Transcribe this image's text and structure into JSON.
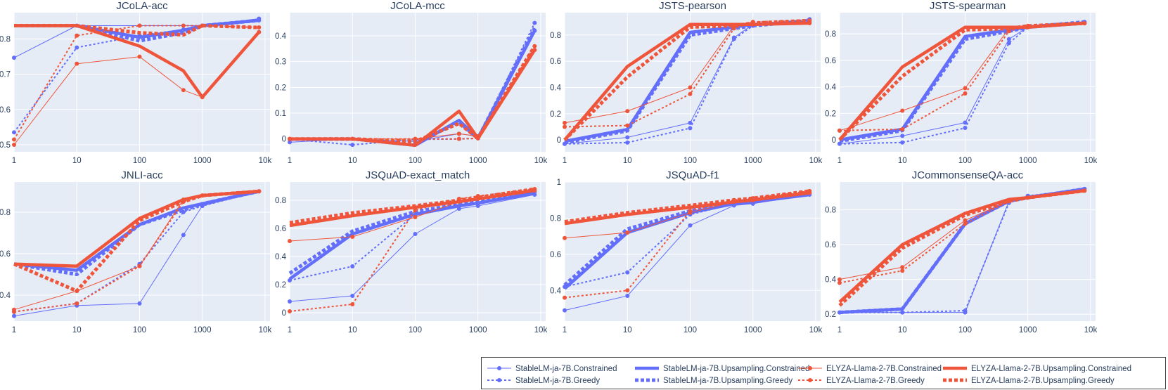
{
  "chart_data": {
    "type": "line",
    "x_tick_labels": [
      "1",
      "10",
      "100",
      "1000",
      "10k"
    ],
    "x_values": [
      1,
      10,
      100,
      500,
      1000,
      8000
    ],
    "x_scale": "log",
    "series_styles": {
      "StableLM-ja-7B.Constrained": {
        "color": "#636efa",
        "width": 1,
        "dash": "solid",
        "markers": true
      },
      "StableLM-ja-7B.Greedy": {
        "color": "#636efa",
        "width": 2,
        "dash": "dot",
        "markers": true
      },
      "StableLM-ja-7B.Upsampling.Constrained": {
        "color": "#636efa",
        "width": 4.5,
        "dash": "solid",
        "markers": false
      },
      "StableLM-ja-7B.Upsampling.Greedy": {
        "color": "#636efa",
        "width": 5,
        "dash": "dot",
        "markers": false
      },
      "ELYZA-Llama-2-7B.Constrained": {
        "color": "#ef553b",
        "width": 1,
        "dash": "solid",
        "markers": true
      },
      "ELYZA-Llama-2-7B.Greedy": {
        "color": "#ef553b",
        "width": 2,
        "dash": "dot",
        "markers": true
      },
      "ELYZA-Llama-2-7B.Upsampling.Constrained": {
        "color": "#ef553b",
        "width": 4.5,
        "dash": "solid",
        "markers": false
      },
      "ELYZA-Llama-2-7B.Upsampling.Greedy": {
        "color": "#ef553b",
        "width": 5,
        "dash": "dot",
        "markers": false
      }
    },
    "panels": [
      {
        "title": "JCoLA-acc",
        "ylim": [
          0.48,
          0.875
        ],
        "y_ticks": [
          0.5,
          0.6,
          0.7,
          0.8
        ],
        "y_tick_labels": [
          "0.5",
          "0.6",
          "0.7",
          "0.8"
        ],
        "series": [
          {
            "name": "StableLM-ja-7B.Constrained",
            "values": [
              0.747,
              0.838,
              0.838,
              0.838,
              0.838,
              0.858
            ]
          },
          {
            "name": "StableLM-ja-7B.Greedy",
            "values": [
              0.535,
              0.776,
              0.81,
              0.827,
              0.838,
              0.853
            ]
          },
          {
            "name": "StableLM-ja-7B.Upsampling.Constrained",
            "values": [
              0.838,
              0.838,
              0.805,
              0.825,
              0.838,
              0.853
            ]
          },
          {
            "name": "StableLM-ja-7B.Upsampling.Greedy",
            "values": [
              0.838,
              0.838,
              0.795,
              0.818,
              0.838,
              0.853
            ]
          },
          {
            "name": "ELYZA-Llama-2-7B.Constrained",
            "values": [
              0.5,
              0.73,
              0.75,
              0.655,
              0.635,
              0.82
            ]
          },
          {
            "name": "ELYZA-Llama-2-7B.Greedy",
            "values": [
              0.515,
              0.81,
              0.838,
              0.838,
              0.838,
              0.833
            ]
          },
          {
            "name": "ELYZA-Llama-2-7B.Upsampling.Constrained",
            "values": [
              0.838,
              0.838,
              0.78,
              0.71,
              0.635,
              0.82
            ]
          },
          {
            "name": "ELYZA-Llama-2-7B.Upsampling.Greedy",
            "values": [
              0.838,
              0.838,
              0.818,
              0.812,
              0.838,
              0.833
            ]
          }
        ]
      },
      {
        "title": "JCoLA-mcc",
        "ylim": [
          -0.05,
          0.49
        ],
        "y_ticks": [
          0,
          0.1,
          0.2,
          0.3,
          0.4
        ],
        "y_tick_labels": [
          "0",
          "0.1",
          "0.2",
          "0.3",
          "0.4"
        ],
        "series": [
          {
            "name": "StableLM-ja-7B.Constrained",
            "values": [
              -0.013,
              0.0,
              -0.01,
              0.02,
              0.01,
              0.42
            ]
          },
          {
            "name": "StableLM-ja-7B.Greedy",
            "values": [
              -0.001,
              -0.023,
              -0.002,
              0.0,
              0.002,
              0.45
            ]
          },
          {
            "name": "StableLM-ja-7B.Upsampling.Constrained",
            "values": [
              -0.001,
              0.0,
              -0.025,
              0.072,
              0.002,
              0.42
            ]
          },
          {
            "name": "StableLM-ja-7B.Upsampling.Greedy",
            "values": [
              -0.001,
              0.0,
              -0.015,
              0.065,
              0.002,
              0.43
            ]
          },
          {
            "name": "ELYZA-Llama-2-7B.Constrained",
            "values": [
              0.0,
              0.0,
              0.0,
              0.02,
              0.01,
              0.345
            ]
          },
          {
            "name": "ELYZA-Llama-2-7B.Greedy",
            "values": [
              0.0,
              0.0,
              0.0,
              0.0,
              0.002,
              0.36
            ]
          },
          {
            "name": "ELYZA-Llama-2-7B.Upsampling.Constrained",
            "values": [
              0.0,
              0.0,
              -0.025,
              0.108,
              0.002,
              0.345
            ]
          },
          {
            "name": "ELYZA-Llama-2-7B.Upsampling.Greedy",
            "values": [
              0.0,
              0.0,
              -0.01,
              0.06,
              0.002,
              0.36
            ]
          }
        ]
      },
      {
        "title": "JSTS-pearson",
        "ylim": [
          -0.09,
          0.97
        ],
        "y_ticks": [
          0,
          0.2,
          0.4,
          0.6,
          0.8
        ],
        "y_tick_labels": [
          "0",
          "0.2",
          "0.4",
          "0.6",
          "0.8"
        ],
        "series": [
          {
            "name": "StableLM-ja-7B.Constrained",
            "values": [
              -0.03,
              0.02,
              0.13,
              0.78,
              0.88,
              0.9
            ]
          },
          {
            "name": "StableLM-ja-7B.Greedy",
            "values": [
              -0.03,
              -0.02,
              0.09,
              0.77,
              0.87,
              0.92
            ]
          },
          {
            "name": "StableLM-ja-7B.Upsampling.Constrained",
            "values": [
              -0.01,
              0.08,
              0.82,
              0.86,
              0.88,
              0.9
            ]
          },
          {
            "name": "StableLM-ja-7B.Upsampling.Greedy",
            "values": [
              -0.02,
              0.07,
              0.8,
              0.85,
              0.87,
              0.91
            ]
          },
          {
            "name": "ELYZA-Llama-2-7B.Constrained",
            "values": [
              0.13,
              0.22,
              0.4,
              0.87,
              0.88,
              0.89
            ]
          },
          {
            "name": "ELYZA-Llama-2-7B.Greedy",
            "values": [
              0.1,
              0.11,
              0.35,
              0.85,
              0.9,
              0.91
            ]
          },
          {
            "name": "ELYZA-Llama-2-7B.Upsampling.Constrained",
            "values": [
              0.0,
              0.56,
              0.88,
              0.88,
              0.88,
              0.89
            ]
          },
          {
            "name": "ELYZA-Llama-2-7B.Upsampling.Greedy",
            "values": [
              0.0,
              0.48,
              0.86,
              0.87,
              0.89,
              0.91
            ]
          }
        ]
      },
      {
        "title": "JSTS-spearman",
        "ylim": [
          -0.09,
          0.96
        ],
        "y_ticks": [
          0,
          0.2,
          0.4,
          0.6,
          0.8
        ],
        "y_tick_labels": [
          "0",
          "0.2",
          "0.4",
          "0.6",
          "0.8"
        ],
        "series": [
          {
            "name": "StableLM-ja-7B.Constrained",
            "values": [
              -0.03,
              0.03,
              0.13,
              0.76,
              0.85,
              0.88
            ]
          },
          {
            "name": "StableLM-ja-7B.Greedy",
            "values": [
              -0.03,
              -0.02,
              0.09,
              0.73,
              0.85,
              0.89
            ]
          },
          {
            "name": "StableLM-ja-7B.Upsampling.Constrained",
            "values": [
              0.0,
              0.08,
              0.78,
              0.83,
              0.85,
              0.88
            ]
          },
          {
            "name": "StableLM-ja-7B.Upsampling.Greedy",
            "values": [
              -0.01,
              0.07,
              0.76,
              0.82,
              0.85,
              0.89
            ]
          },
          {
            "name": "ELYZA-Llama-2-7B.Constrained",
            "values": [
              0.07,
              0.22,
              0.39,
              0.84,
              0.85,
              0.88
            ]
          },
          {
            "name": "ELYZA-Llama-2-7B.Greedy",
            "values": [
              0.07,
              0.08,
              0.35,
              0.82,
              0.86,
              0.88
            ]
          },
          {
            "name": "ELYZA-Llama-2-7B.Upsampling.Constrained",
            "values": [
              0.0,
              0.55,
              0.85,
              0.85,
              0.85,
              0.88
            ]
          },
          {
            "name": "ELYZA-Llama-2-7B.Upsampling.Greedy",
            "values": [
              0.0,
              0.48,
              0.83,
              0.84,
              0.86,
              0.88
            ]
          }
        ]
      },
      {
        "title": "JNLI-acc",
        "ylim": [
          0.275,
          0.945
        ],
        "y_ticks": [
          0.4,
          0.6,
          0.8
        ],
        "y_tick_labels": [
          "0.4",
          "0.6",
          "0.8"
        ],
        "series": [
          {
            "name": "StableLM-ja-7B.Constrained",
            "values": [
              0.3,
              0.35,
              0.36,
              0.69,
              0.83,
              0.9
            ]
          },
          {
            "name": "StableLM-ja-7B.Greedy",
            "values": [
              0.32,
              0.36,
              0.55,
              0.8,
              0.83,
              0.9
            ]
          },
          {
            "name": "StableLM-ja-7B.Upsampling.Constrained",
            "values": [
              0.55,
              0.52,
              0.74,
              0.82,
              0.84,
              0.9
            ]
          },
          {
            "name": "StableLM-ja-7B.Upsampling.Greedy",
            "values": [
              0.55,
              0.5,
              0.74,
              0.81,
              0.84,
              0.9
            ]
          },
          {
            "name": "ELYZA-Llama-2-7B.Constrained",
            "values": [
              0.33,
              0.42,
              0.54,
              0.86,
              0.88,
              0.9
            ]
          },
          {
            "name": "ELYZA-Llama-2-7B.Greedy",
            "values": [
              0.32,
              0.36,
              0.54,
              0.85,
              0.88,
              0.9
            ]
          },
          {
            "name": "ELYZA-Llama-2-7B.Upsampling.Constrained",
            "values": [
              0.55,
              0.54,
              0.77,
              0.86,
              0.88,
              0.9
            ]
          },
          {
            "name": "ELYZA-Llama-2-7B.Upsampling.Greedy",
            "values": [
              0.55,
              0.42,
              0.76,
              0.85,
              0.88,
              0.9
            ]
          }
        ]
      },
      {
        "title": "JSQuAD-exact_match",
        "ylim": [
          -0.06,
          0.93
        ],
        "y_ticks": [
          0,
          0.2,
          0.4,
          0.6,
          0.8
        ],
        "y_tick_labels": [
          "0",
          "0.2",
          "0.4",
          "0.6",
          "0.8"
        ],
        "series": [
          {
            "name": "StableLM-ja-7B.Constrained",
            "values": [
              0.08,
              0.12,
              0.56,
              0.74,
              0.76,
              0.84
            ]
          },
          {
            "name": "StableLM-ja-7B.Greedy",
            "values": [
              0.23,
              0.33,
              0.7,
              0.76,
              0.78,
              0.86
            ]
          },
          {
            "name": "StableLM-ja-7B.Upsampling.Constrained",
            "values": [
              0.24,
              0.56,
              0.7,
              0.76,
              0.78,
              0.85
            ]
          },
          {
            "name": "StableLM-ja-7B.Upsampling.Greedy",
            "values": [
              0.28,
              0.58,
              0.72,
              0.77,
              0.79,
              0.86
            ]
          },
          {
            "name": "ELYZA-Llama-2-7B.Constrained",
            "values": [
              0.51,
              0.54,
              0.68,
              0.79,
              0.81,
              0.87
            ]
          },
          {
            "name": "ELYZA-Llama-2-7B.Greedy",
            "values": [
              0.01,
              0.06,
              0.73,
              0.81,
              0.83,
              0.88
            ]
          },
          {
            "name": "ELYZA-Llama-2-7B.Upsampling.Constrained",
            "values": [
              0.62,
              0.69,
              0.75,
              0.79,
              0.81,
              0.87
            ]
          },
          {
            "name": "ELYZA-Llama-2-7B.Upsampling.Greedy",
            "values": [
              0.64,
              0.71,
              0.76,
              0.8,
              0.82,
              0.88
            ]
          }
        ]
      },
      {
        "title": "JSQuAD-f1",
        "ylim": [
          0.23,
          1.0
        ],
        "y_ticks": [
          0.4,
          0.6,
          0.8,
          1
        ],
        "y_tick_labels": [
          "0.4",
          "0.6",
          "0.8",
          "1"
        ],
        "series": [
          {
            "name": "StableLM-ja-7B.Constrained",
            "values": [
              0.29,
              0.37,
              0.76,
              0.87,
              0.88,
              0.93
            ]
          },
          {
            "name": "StableLM-ja-7B.Greedy",
            "values": [
              0.42,
              0.5,
              0.82,
              0.88,
              0.89,
              0.94
            ]
          },
          {
            "name": "StableLM-ja-7B.Upsampling.Constrained",
            "values": [
              0.41,
              0.72,
              0.83,
              0.88,
              0.89,
              0.93
            ]
          },
          {
            "name": "StableLM-ja-7B.Upsampling.Greedy",
            "values": [
              0.43,
              0.74,
              0.84,
              0.89,
              0.9,
              0.94
            ]
          },
          {
            "name": "ELYZA-Llama-2-7B.Constrained",
            "values": [
              0.69,
              0.72,
              0.83,
              0.89,
              0.9,
              0.94
            ]
          },
          {
            "name": "ELYZA-Llama-2-7B.Greedy",
            "values": [
              0.36,
              0.4,
              0.84,
              0.9,
              0.91,
              0.95
            ]
          },
          {
            "name": "ELYZA-Llama-2-7B.Upsampling.Constrained",
            "values": [
              0.77,
              0.82,
              0.86,
              0.89,
              0.9,
              0.94
            ]
          },
          {
            "name": "ELYZA-Llama-2-7B.Upsampling.Greedy",
            "values": [
              0.78,
              0.83,
              0.87,
              0.9,
              0.91,
              0.95
            ]
          }
        ]
      },
      {
        "title": "JCommonsenseQA-acc",
        "ylim": [
          0.16,
          0.96
        ],
        "y_ticks": [
          0.2,
          0.4,
          0.6,
          0.8
        ],
        "y_tick_labels": [
          "0.2",
          "0.4",
          "0.6",
          "0.8"
        ],
        "series": [
          {
            "name": "StableLM-ja-7B.Constrained",
            "values": [
              0.21,
              0.21,
              0.21,
              0.85,
              0.88,
              0.92
            ]
          },
          {
            "name": "StableLM-ja-7B.Greedy",
            "values": [
              0.21,
              0.21,
              0.22,
              0.84,
              0.88,
              0.92
            ]
          },
          {
            "name": "StableLM-ja-7B.Upsampling.Constrained",
            "values": [
              0.21,
              0.23,
              0.72,
              0.85,
              0.87,
              0.92
            ]
          },
          {
            "name": "StableLM-ja-7B.Upsampling.Greedy",
            "values": [
              0.21,
              0.23,
              0.72,
              0.85,
              0.87,
              0.92
            ]
          },
          {
            "name": "ELYZA-Llama-2-7B.Constrained",
            "values": [
              0.4,
              0.47,
              0.74,
              0.85,
              0.87,
              0.91
            ]
          },
          {
            "name": "ELYZA-Llama-2-7B.Greedy",
            "values": [
              0.38,
              0.45,
              0.72,
              0.85,
              0.87,
              0.91
            ]
          },
          {
            "name": "ELYZA-Llama-2-7B.Upsampling.Constrained",
            "values": [
              0.27,
              0.6,
              0.78,
              0.86,
              0.87,
              0.91
            ]
          },
          {
            "name": "ELYZA-Llama-2-7B.Upsampling.Greedy",
            "values": [
              0.25,
              0.58,
              0.77,
              0.85,
              0.87,
              0.91
            ]
          }
        ]
      }
    ],
    "legend": {
      "placement": "bottom-right",
      "entries": [
        "StableLM-ja-7B.Constrained",
        "StableLM-ja-7B.Upsampling.Constrained",
        "ELYZA-Llama-2-7B.Constrained",
        "ELYZA-Llama-2-7B.Upsampling.Constrained",
        "StableLM-ja-7B.Greedy",
        "StableLM-ja-7B.Upsampling.Greedy",
        "ELYZA-Llama-2-7B.Greedy",
        "ELYZA-Llama-2-7B.Upsampling.Greedy"
      ]
    },
    "grid": true,
    "plot_bgcolor": "#e5ecf6"
  }
}
